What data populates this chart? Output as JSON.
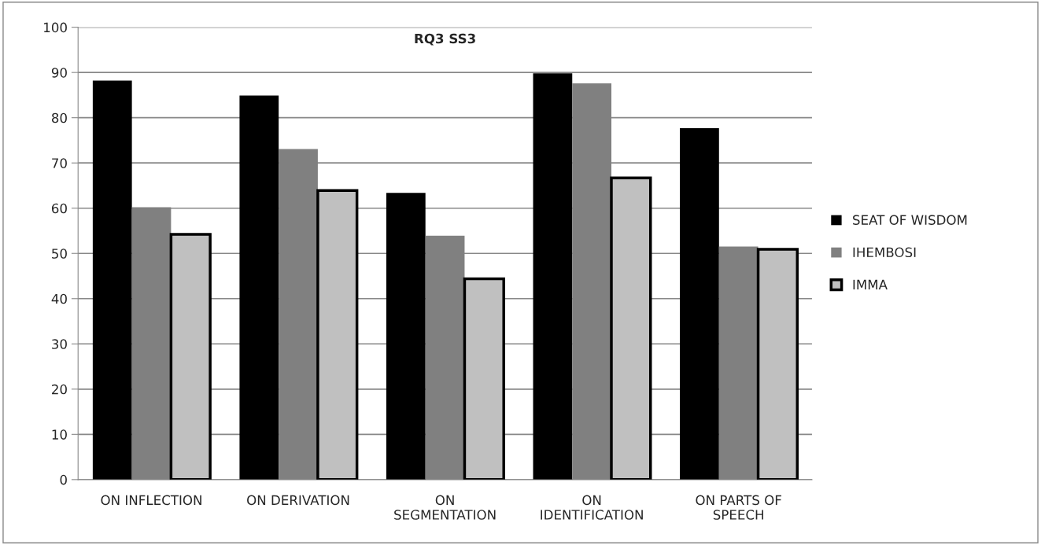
{
  "chart_data": {
    "type": "bar",
    "title": "RQ3 SS3",
    "categories": [
      "ON INFLECTION",
      "ON DERIVATION",
      "ON\nSEGMENTATION",
      "ON\nIDENTIFICATION",
      "ON PARTS OF\nSPEECH"
    ],
    "series": [
      {
        "name": "SEAT OF WISDOM",
        "color": "#000000",
        "values": [
          88.2,
          84.9,
          63.4,
          89.8,
          77.7
        ]
      },
      {
        "name": "IHEMBOSI",
        "color": "#808080",
        "values": [
          60.2,
          73.1,
          53.9,
          87.6,
          51.5
        ]
      },
      {
        "name": "IMMA",
        "color": "#c0c0c0",
        "values": [
          54.2,
          63.9,
          44.4,
          66.7,
          50.9
        ]
      }
    ],
    "ylim": [
      0,
      100
    ],
    "yticks": [
      0,
      10,
      20,
      30,
      40,
      50,
      60,
      70,
      80,
      90,
      100
    ],
    "grid": "y",
    "legend": "right"
  }
}
